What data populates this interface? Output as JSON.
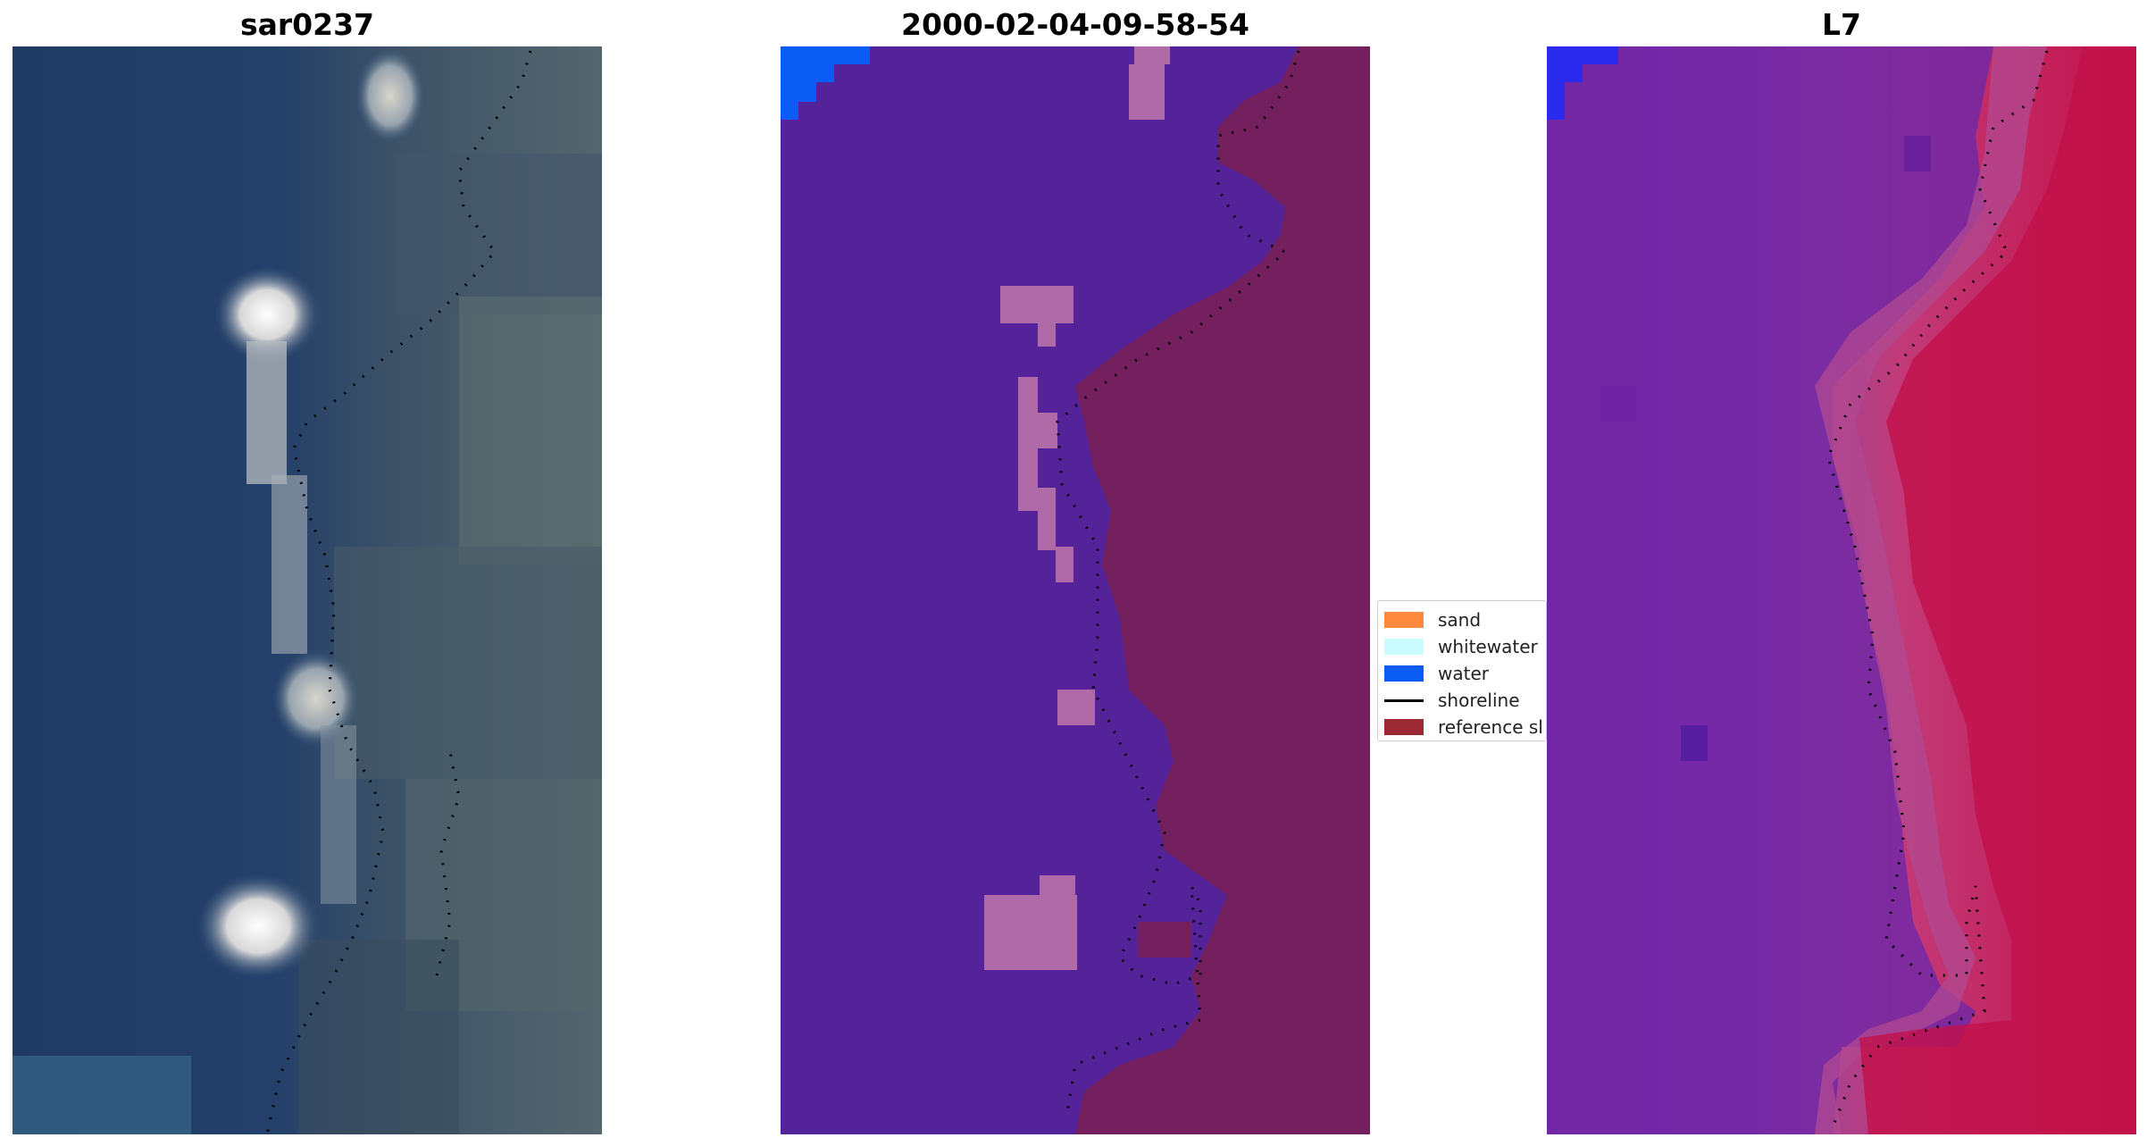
{
  "panels": {
    "left": {
      "title": "sar0237",
      "image": "Landsat true-color satellite image: dark blue ocean on left, bright white surf patches along coast, grey-green land on right; black dotted shoreline"
    },
    "middle": {
      "title": "2000-02-04-09-58-54",
      "image": "Pixel classification map: purple land/background, pink misclassified patches, bright blue water patch in top-left corner, maroon reference shoreline buffer on right, black dotted shoreline"
    },
    "right": {
      "title": "L7",
      "image": "Index composite image: purple-violet on left grading to crimson red on right, blue patch top-left, black dotted shoreline"
    }
  },
  "legend": {
    "items": [
      {
        "label": "sand",
        "color": "#ff8a3d",
        "kind": "patch"
      },
      {
        "label": "whitewater",
        "color": "#c9fbff",
        "kind": "patch"
      },
      {
        "label": "water",
        "color": "#0a5cf5",
        "kind": "patch"
      },
      {
        "label": "shoreline",
        "color": "#000000",
        "kind": "line"
      },
      {
        "label": "reference sl",
        "color": "#9b2a36",
        "kind": "patch"
      }
    ]
  },
  "colors": {
    "ocean": "#1f3f68",
    "land_grey": "#4b5e6a",
    "class_purple": "#54239a",
    "class_pink": "#b06aa8",
    "class_maroon": "#7a1e5e",
    "class_water_blue": "#0a5cf5",
    "index_purple": "#7a2aa6",
    "index_red": "#c21048",
    "index_blue": "#2b2bf0"
  }
}
